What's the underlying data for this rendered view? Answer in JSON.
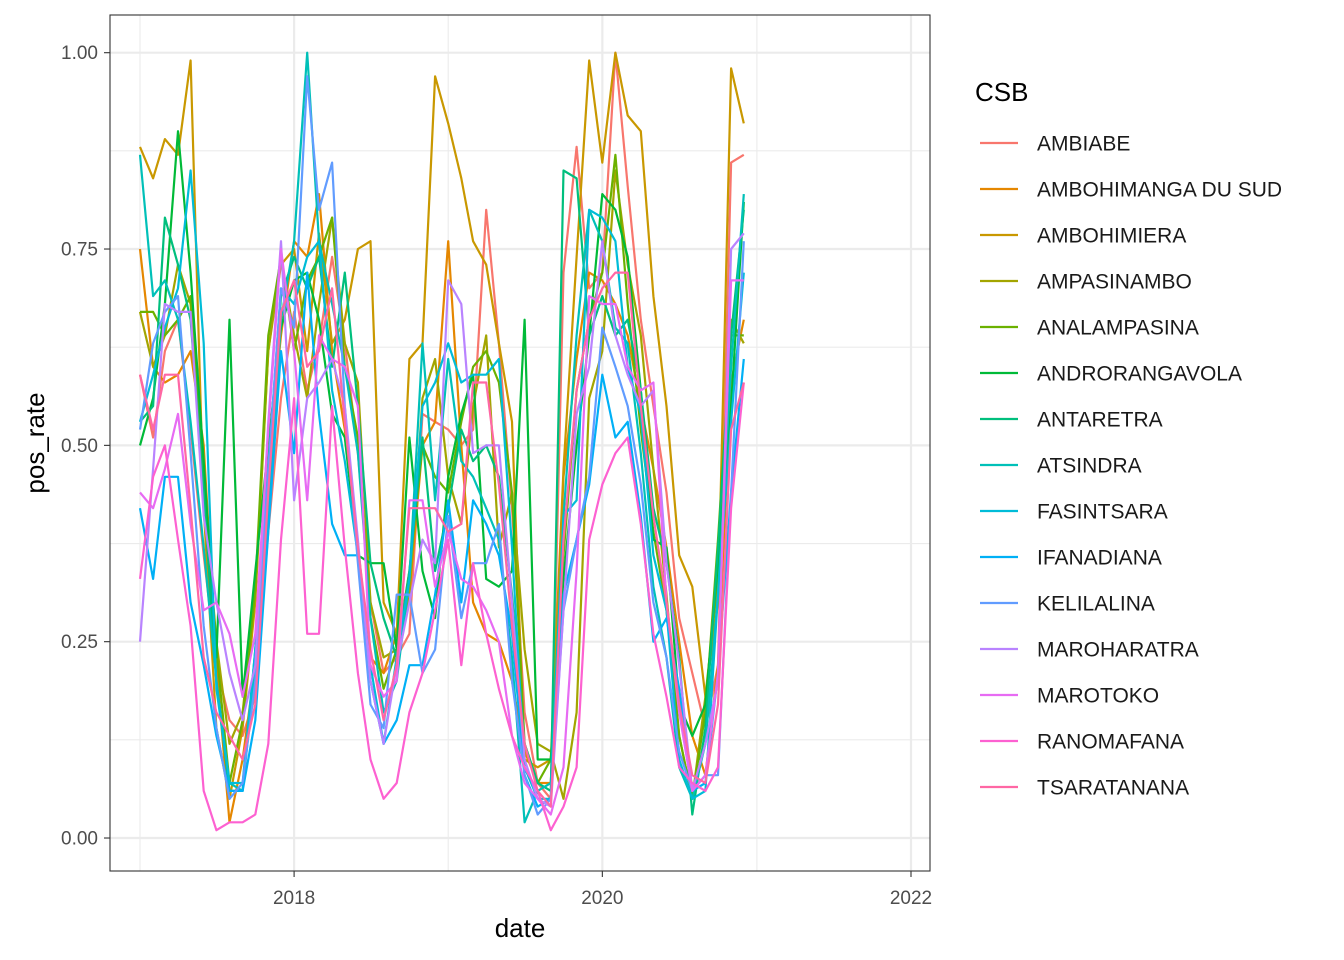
{
  "chart_data": {
    "type": "line",
    "xlabel": "date",
    "ylabel": "pos_rate",
    "xlim": [
      "2016-10-22",
      "2022-02-15"
    ],
    "ylim": [
      -0.042,
      1.048
    ],
    "x_ticks": [
      {
        "date": "2018-01-01",
        "label": "2018"
      },
      {
        "date": "2020-01-01",
        "label": "2020"
      },
      {
        "date": "2022-01-01",
        "label": "2022"
      }
    ],
    "x_minor_ticks": [
      "2017-01-01",
      "2019-01-01",
      "2021-01-01"
    ],
    "y_ticks": [
      {
        "value": 0,
        "label": "0.00"
      },
      {
        "value": 0.25,
        "label": "0.25"
      },
      {
        "value": 0.5,
        "label": "0.50"
      },
      {
        "value": 0.75,
        "label": "0.75"
      },
      {
        "value": 1,
        "label": "1.00"
      }
    ],
    "y_minor_ticks": [
      0.125,
      0.375,
      0.625,
      0.875
    ],
    "grid": true,
    "legend": {
      "title": "CSB",
      "position": "right"
    },
    "months": [
      "2017-01",
      "2017-02",
      "2017-03",
      "2017-04",
      "2017-05",
      "2017-06",
      "2017-07",
      "2017-08",
      "2017-09",
      "2017-10",
      "2017-11",
      "2017-12",
      "2018-01",
      "2018-02",
      "2018-03",
      "2018-04",
      "2018-05",
      "2018-06",
      "2018-07",
      "2018-08",
      "2018-09",
      "2018-10",
      "2018-11",
      "2018-12",
      "2019-01",
      "2019-02",
      "2019-03",
      "2019-04",
      "2019-05",
      "2019-06",
      "2019-07",
      "2019-08",
      "2019-09",
      "2019-10",
      "2019-11",
      "2019-12",
      "2020-01",
      "2020-02",
      "2020-03",
      "2020-04",
      "2020-05",
      "2020-06",
      "2020-07",
      "2020-08",
      "2020-09",
      "2020-10",
      "2020-11",
      "2020-12"
    ],
    "series": [
      {
        "name": "AMBIABE",
        "color": "#F8766D",
        "values": [
          0.59,
          0.51,
          0.62,
          0.66,
          0.52,
          0.36,
          0.22,
          0.15,
          0.13,
          0.18,
          0.39,
          0.56,
          0.67,
          0.57,
          0.63,
          0.74,
          0.63,
          0.49,
          0.3,
          0.21,
          0.23,
          0.26,
          0.54,
          0.53,
          0.52,
          0.5,
          0.52,
          0.8,
          0.63,
          0.42,
          0.16,
          0.07,
          0.05,
          0.72,
          0.88,
          0.7,
          0.72,
          1.0,
          0.83,
          0.66,
          0.55,
          0.44,
          0.28,
          0.21,
          0.14,
          0.22,
          0.86,
          0.87
        ]
      },
      {
        "name": "AMBOHIMANGA DU SUD",
        "color": "#E58700",
        "values": [
          0.75,
          0.6,
          0.58,
          0.59,
          0.62,
          0.5,
          0.22,
          0.02,
          0.1,
          0.22,
          0.48,
          0.64,
          0.76,
          0.74,
          0.82,
          0.62,
          0.52,
          0.37,
          0.23,
          0.21,
          0.26,
          0.31,
          0.5,
          0.53,
          0.76,
          0.5,
          0.3,
          0.26,
          0.25,
          0.2,
          0.11,
          0.07,
          0.07,
          0.46,
          0.61,
          0.72,
          0.71,
          0.68,
          0.64,
          0.55,
          0.47,
          0.37,
          0.25,
          0.13,
          0.08,
          0.22,
          0.58,
          0.66
        ]
      },
      {
        "name": "AMBOHIMIERA",
        "color": "#C99800",
        "values": [
          0.88,
          0.84,
          0.89,
          0.87,
          0.99,
          0.42,
          0.14,
          0.05,
          0.14,
          0.3,
          0.62,
          0.73,
          0.75,
          0.62,
          0.77,
          0.63,
          0.66,
          0.75,
          0.76,
          0.3,
          0.26,
          0.61,
          0.63,
          0.97,
          0.91,
          0.84,
          0.76,
          0.73,
          0.63,
          0.53,
          0.1,
          0.09,
          0.1,
          0.47,
          0.74,
          0.99,
          0.86,
          1.0,
          0.92,
          0.9,
          0.69,
          0.55,
          0.36,
          0.32,
          0.18,
          0.3,
          0.98,
          0.91
        ]
      },
      {
        "name": "AMPASINAMBO",
        "color": "#A3A500",
        "values": [
          0.67,
          0.6,
          0.64,
          0.73,
          0.68,
          0.45,
          0.25,
          0.12,
          0.16,
          0.31,
          0.62,
          0.74,
          0.64,
          0.56,
          0.68,
          0.79,
          0.63,
          0.58,
          0.3,
          0.23,
          0.24,
          0.31,
          0.56,
          0.61,
          0.46,
          0.4,
          0.55,
          0.64,
          0.37,
          0.44,
          0.24,
          0.12,
          0.11,
          0.05,
          0.16,
          0.56,
          0.62,
          0.85,
          0.73,
          0.64,
          0.47,
          0.31,
          0.13,
          0.05,
          0.18,
          0.33,
          0.66,
          0.63
        ]
      },
      {
        "name": "ANALAMPASINA",
        "color": "#6BB100",
        "values": [
          0.67,
          0.67,
          0.64,
          0.66,
          0.69,
          0.47,
          0.24,
          0.07,
          0.15,
          0.32,
          0.64,
          0.74,
          0.62,
          0.71,
          0.74,
          0.79,
          0.6,
          0.51,
          0.28,
          0.19,
          0.24,
          0.34,
          0.5,
          0.46,
          0.44,
          0.53,
          0.6,
          0.62,
          0.58,
          0.44,
          0.12,
          0.07,
          0.1,
          0.36,
          0.57,
          0.66,
          0.72,
          0.87,
          0.68,
          0.52,
          0.39,
          0.29,
          0.13,
          0.05,
          0.16,
          0.38,
          0.64,
          0.64
        ]
      },
      {
        "name": "ANDRORANGAVOLA",
        "color": "#00BA38",
        "values": [
          0.5,
          0.56,
          0.68,
          0.9,
          0.72,
          0.48,
          0.23,
          0.66,
          0.18,
          0.34,
          0.5,
          0.65,
          0.71,
          0.72,
          0.66,
          0.54,
          0.51,
          0.36,
          0.35,
          0.35,
          0.24,
          0.51,
          0.34,
          0.28,
          0.46,
          0.54,
          0.59,
          0.33,
          0.32,
          0.34,
          0.66,
          0.1,
          0.1,
          0.33,
          0.5,
          0.64,
          0.82,
          0.8,
          0.74,
          0.57,
          0.38,
          0.37,
          0.17,
          0.13,
          0.17,
          0.35,
          0.55,
          0.81
        ]
      },
      {
        "name": "ANTARETRA",
        "color": "#00BF7D",
        "values": [
          0.53,
          0.55,
          0.79,
          0.73,
          0.66,
          0.44,
          0.2,
          0.06,
          0.06,
          0.24,
          0.45,
          0.69,
          0.74,
          0.7,
          0.74,
          0.6,
          0.72,
          0.55,
          0.35,
          0.28,
          0.23,
          0.34,
          0.51,
          0.34,
          0.42,
          0.52,
          0.48,
          0.5,
          0.46,
          0.31,
          0.12,
          0.07,
          0.06,
          0.85,
          0.84,
          0.64,
          0.69,
          0.64,
          0.66,
          0.57,
          0.42,
          0.35,
          0.23,
          0.03,
          0.14,
          0.37,
          0.64,
          0.8
        ]
      },
      {
        "name": "ATSINDRA",
        "color": "#00C0B8",
        "values": [
          0.87,
          0.69,
          0.71,
          0.66,
          0.53,
          0.37,
          0.2,
          0.07,
          0.06,
          0.22,
          0.41,
          0.66,
          0.76,
          1.0,
          0.76,
          0.68,
          0.6,
          0.49,
          0.28,
          0.16,
          0.2,
          0.33,
          0.63,
          0.43,
          0.61,
          0.48,
          0.46,
          0.42,
          0.38,
          0.23,
          0.02,
          0.06,
          0.07,
          0.41,
          0.64,
          0.8,
          0.76,
          0.65,
          0.63,
          0.49,
          0.32,
          0.23,
          0.09,
          0.05,
          0.12,
          0.31,
          0.6,
          0.82
        ]
      },
      {
        "name": "FASINTSARA",
        "color": "#00BCD8",
        "values": [
          0.53,
          0.59,
          0.65,
          0.7,
          0.85,
          0.63,
          0.19,
          0.07,
          0.07,
          0.24,
          0.47,
          0.7,
          0.68,
          0.74,
          0.76,
          0.57,
          0.48,
          0.36,
          0.22,
          0.12,
          0.23,
          0.33,
          0.55,
          0.58,
          0.63,
          0.58,
          0.59,
          0.59,
          0.61,
          0.37,
          0.09,
          0.05,
          0.05,
          0.41,
          0.43,
          0.8,
          0.79,
          0.76,
          0.6,
          0.54,
          0.36,
          0.29,
          0.1,
          0.05,
          0.06,
          0.31,
          0.53,
          0.72
        ]
      },
      {
        "name": "IFANADIANA",
        "color": "#00B0F6",
        "values": [
          0.42,
          0.33,
          0.46,
          0.46,
          0.3,
          0.22,
          0.13,
          0.06,
          0.06,
          0.15,
          0.39,
          0.62,
          0.49,
          0.72,
          0.54,
          0.4,
          0.36,
          0.36,
          0.2,
          0.12,
          0.15,
          0.22,
          0.22,
          0.31,
          0.43,
          0.3,
          0.43,
          0.4,
          0.36,
          0.26,
          0.08,
          0.04,
          0.05,
          0.31,
          0.38,
          0.45,
          0.59,
          0.51,
          0.53,
          0.41,
          0.25,
          0.28,
          0.19,
          0.06,
          0.07,
          0.21,
          0.44,
          0.61
        ]
      },
      {
        "name": "KELILALINA",
        "color": "#619CFF",
        "values": [
          0.52,
          0.63,
          0.67,
          0.69,
          0.49,
          0.27,
          0.14,
          0.05,
          0.07,
          0.2,
          0.47,
          0.7,
          0.65,
          0.97,
          0.8,
          0.86,
          0.55,
          0.35,
          0.17,
          0.14,
          0.31,
          0.31,
          0.21,
          0.24,
          0.41,
          0.28,
          0.35,
          0.35,
          0.4,
          0.2,
          0.08,
          0.03,
          0.05,
          0.29,
          0.38,
          0.46,
          0.65,
          0.6,
          0.55,
          0.45,
          0.3,
          0.23,
          0.11,
          0.06,
          0.08,
          0.08,
          0.44,
          0.76
        ]
      },
      {
        "name": "MAROHARATRA",
        "color": "#B983FF",
        "values": [
          0.25,
          0.47,
          0.68,
          0.67,
          0.67,
          0.41,
          0.3,
          0.21,
          0.15,
          0.22,
          0.53,
          0.76,
          0.43,
          0.56,
          0.58,
          0.61,
          0.55,
          0.38,
          0.2,
          0.12,
          0.22,
          0.3,
          0.38,
          0.35,
          0.71,
          0.68,
          0.49,
          0.5,
          0.5,
          0.3,
          0.1,
          0.05,
          0.04,
          0.29,
          0.54,
          0.6,
          0.76,
          0.64,
          0.59,
          0.55,
          0.57,
          0.35,
          0.22,
          0.06,
          0.12,
          0.2,
          0.75,
          0.77
        ]
      },
      {
        "name": "MAROTOKO",
        "color": "#E76BF3",
        "values": [
          0.44,
          0.42,
          0.47,
          0.54,
          0.4,
          0.29,
          0.3,
          0.26,
          0.18,
          0.26,
          0.52,
          0.75,
          0.62,
          0.43,
          0.64,
          0.61,
          0.6,
          0.55,
          0.22,
          0.18,
          0.2,
          0.43,
          0.43,
          0.32,
          0.39,
          0.33,
          0.32,
          0.29,
          0.25,
          0.13,
          0.07,
          0.05,
          0.03,
          0.09,
          0.34,
          0.69,
          0.68,
          0.68,
          0.6,
          0.57,
          0.58,
          0.3,
          0.16,
          0.06,
          0.08,
          0.21,
          0.71,
          0.71
        ]
      },
      {
        "name": "RANOMAFANA",
        "color": "#FD61D1",
        "values": [
          0.33,
          0.46,
          0.5,
          0.38,
          0.27,
          0.06,
          0.01,
          0.02,
          0.02,
          0.03,
          0.12,
          0.38,
          0.56,
          0.26,
          0.26,
          0.55,
          0.37,
          0.21,
          0.1,
          0.05,
          0.07,
          0.16,
          0.21,
          0.29,
          0.38,
          0.22,
          0.35,
          0.26,
          0.19,
          0.13,
          0.09,
          0.06,
          0.01,
          0.04,
          0.09,
          0.38,
          0.45,
          0.49,
          0.51,
          0.4,
          0.26,
          0.18,
          0.09,
          0.07,
          0.06,
          0.09,
          0.42,
          0.58
        ]
      },
      {
        "name": "TSARATANANA",
        "color": "#FF67A4",
        "values": [
          0.59,
          0.52,
          0.59,
          0.59,
          0.42,
          0.23,
          0.16,
          0.13,
          0.1,
          0.17,
          0.44,
          0.67,
          0.71,
          0.6,
          0.62,
          0.7,
          0.53,
          0.37,
          0.24,
          0.15,
          0.22,
          0.42,
          0.42,
          0.42,
          0.39,
          0.4,
          0.58,
          0.58,
          0.45,
          0.27,
          0.12,
          0.06,
          0.04,
          0.38,
          0.57,
          0.66,
          0.7,
          0.72,
          0.72,
          0.55,
          0.41,
          0.3,
          0.17,
          0.08,
          0.07,
          0.17,
          0.52,
          0.58
        ]
      }
    ]
  }
}
